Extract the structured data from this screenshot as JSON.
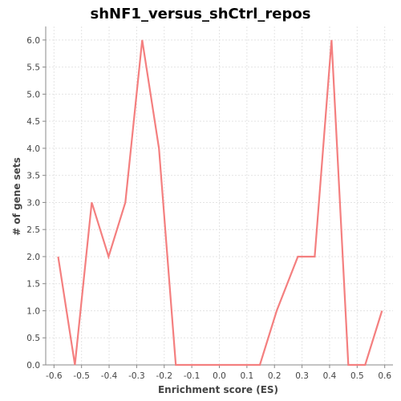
{
  "chart_data": {
    "type": "line",
    "title": "shNF1_versus_shCtrl_repos",
    "xlabel": "Enrichment score (ES)",
    "ylabel": "# of gene sets",
    "xlim": [
      -0.63,
      0.63
    ],
    "ylim": [
      0,
      6.25
    ],
    "x_ticks": [
      "-0.6",
      "-0.5",
      "-0.4",
      "-0.3",
      "-0.2",
      "-0.1",
      "0.0",
      "0.1",
      "0.2",
      "0.3",
      "0.4",
      "0.5",
      "0.6"
    ],
    "x_tick_values": [
      -0.6,
      -0.5,
      -0.4,
      -0.3,
      -0.2,
      -0.1,
      0.0,
      0.1,
      0.2,
      0.3,
      0.4,
      0.5,
      0.6
    ],
    "y_ticks": [
      "0.0",
      "0.5",
      "1.0",
      "1.5",
      "2.0",
      "2.5",
      "3.0",
      "3.5",
      "4.0",
      "4.5",
      "5.0",
      "5.5",
      "6.0"
    ],
    "y_tick_values": [
      0,
      0.5,
      1.0,
      1.5,
      2.0,
      2.5,
      3.0,
      3.5,
      4.0,
      4.5,
      5.0,
      5.5,
      6.0
    ],
    "grid": true,
    "legend": "none",
    "series": [
      {
        "color": "#f47f7f",
        "x": [
          -0.585,
          -0.524,
          -0.463,
          -0.402,
          -0.341,
          -0.28,
          -0.219,
          -0.158,
          -0.097,
          -0.036,
          0.025,
          0.086,
          0.147,
          0.208,
          0.285,
          0.346,
          0.407,
          0.468,
          0.529,
          0.59
        ],
        "y": [
          2,
          0,
          3,
          2,
          3,
          6,
          4,
          0,
          0,
          0,
          0,
          0,
          0,
          1,
          2,
          2,
          6,
          0,
          0,
          1
        ]
      }
    ]
  }
}
